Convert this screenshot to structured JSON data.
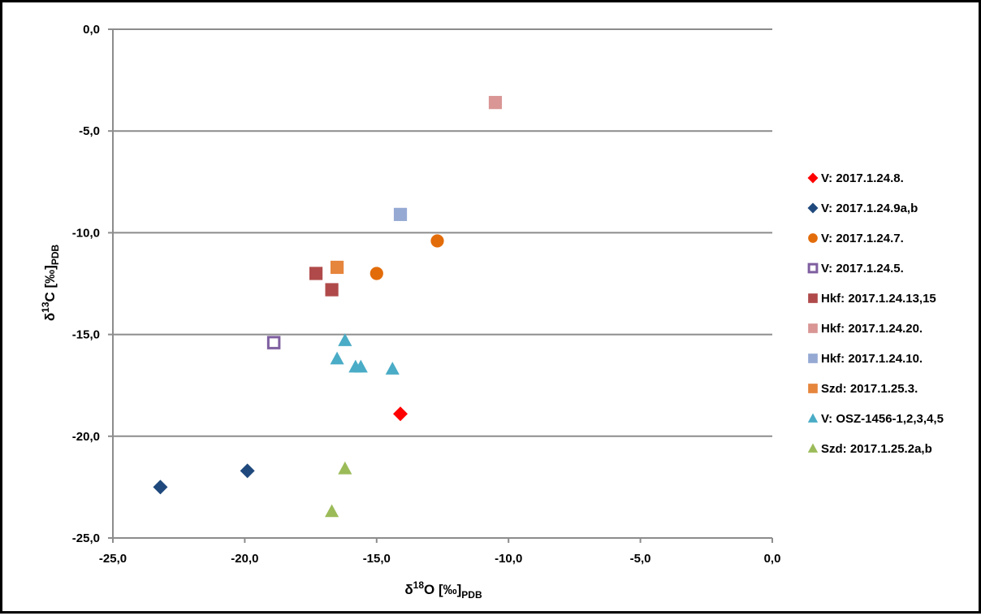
{
  "chart_data": {
    "type": "scatter",
    "xlabel": {
      "symbol": "δ",
      "sup": "18",
      "main": "O [‰]",
      "sub": "PDB"
    },
    "ylabel": {
      "symbol": "δ",
      "sup": "13",
      "main": "C [‰]",
      "sub": "PDB"
    },
    "xlim": [
      -25,
      0
    ],
    "ylim": [
      -25,
      0
    ],
    "x_ticks": [
      {
        "value": -25,
        "label": "-25,0"
      },
      {
        "value": -20,
        "label": "-20,0"
      },
      {
        "value": -15,
        "label": "-15,0"
      },
      {
        "value": -10,
        "label": "-10,0"
      },
      {
        "value": -5,
        "label": "-5,0"
      },
      {
        "value": 0,
        "label": "0,0"
      }
    ],
    "y_ticks": [
      {
        "value": 0,
        "label": "0,0"
      },
      {
        "value": -5,
        "label": "-5,0"
      },
      {
        "value": -10,
        "label": "-10,0"
      },
      {
        "value": -15,
        "label": "-15,0"
      },
      {
        "value": -20,
        "label": "-20,0"
      },
      {
        "value": -25,
        "label": "-25,0"
      }
    ],
    "grid": "horizontal",
    "legend_position": "right",
    "series": [
      {
        "name": "V: 2017.1.24.8.",
        "marker": "diamond",
        "color": "#ff0000",
        "points": [
          [
            -14.1,
            -18.9
          ]
        ]
      },
      {
        "name": "V: 2017.1.24.9a,b",
        "marker": "diamond",
        "color": "#1f497d",
        "points": [
          [
            -23.2,
            -22.5
          ],
          [
            -19.9,
            -21.7
          ]
        ]
      },
      {
        "name": "V: 2017.1.24.7.",
        "marker": "circle",
        "color": "#e36c0a",
        "points": [
          [
            -15.0,
            -12.0
          ],
          [
            -12.7,
            -10.4
          ]
        ]
      },
      {
        "name": "V: 2017.1.24.5.",
        "marker": "square-open",
        "color": "#7f5fa0",
        "points": [
          [
            -18.9,
            -15.4
          ]
        ]
      },
      {
        "name": "Hkf: 2017.1.24.13,15",
        "marker": "square",
        "color": "#b04a4a",
        "points": [
          [
            -17.3,
            -12.0
          ],
          [
            -16.7,
            -12.8
          ]
        ]
      },
      {
        "name": "Hkf: 2017.1.24.20.",
        "marker": "square",
        "color": "#d99694",
        "points": [
          [
            -10.5,
            -3.6
          ]
        ]
      },
      {
        "name": "Hkf: 2017.1.24.10.",
        "marker": "square",
        "color": "#95a9d3",
        "points": [
          [
            -14.1,
            -9.1
          ]
        ]
      },
      {
        "name": "Szd: 2017.1.25.3.",
        "marker": "square",
        "color": "#e6853c",
        "points": [
          [
            -16.5,
            -11.7
          ]
        ]
      },
      {
        "name": "V: OSZ-1456-1,2,3,4,5",
        "marker": "triangle",
        "color": "#4aacc6",
        "points": [
          [
            -16.2,
            -15.3
          ],
          [
            -16.5,
            -16.2
          ],
          [
            -15.8,
            -16.6
          ],
          [
            -15.6,
            -16.6
          ],
          [
            -14.4,
            -16.7
          ]
        ]
      },
      {
        "name": "Szd: 2017.1.25.2a,b",
        "marker": "triangle",
        "color": "#9bbb59",
        "points": [
          [
            -16.2,
            -21.6
          ],
          [
            -16.7,
            -23.7
          ]
        ]
      }
    ]
  }
}
